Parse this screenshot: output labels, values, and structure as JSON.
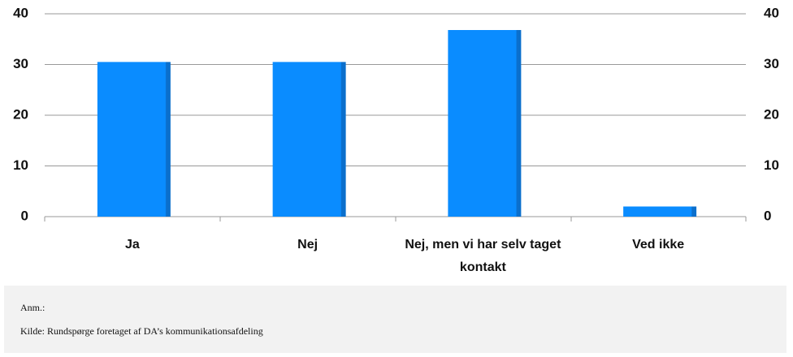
{
  "chart_data": {
    "type": "bar",
    "categories": [
      "Ja",
      "Nej",
      "Nej, men vi har selv taget kontakt",
      "Ved ikke"
    ],
    "values": [
      30.5,
      30.5,
      36.8,
      2
    ],
    "color": "#0a8cff",
    "ylim": [
      0,
      40
    ],
    "yticks": [
      0,
      10,
      20,
      30,
      40
    ],
    "y2lim": [
      0,
      40
    ],
    "y2ticks": [
      0,
      10,
      20,
      30,
      40
    ],
    "grid": true
  },
  "notes": {
    "remark": "Anm.:",
    "source": "Kilde: Rundspørge foretaget af DA’s kommunikationsafdeling"
  }
}
